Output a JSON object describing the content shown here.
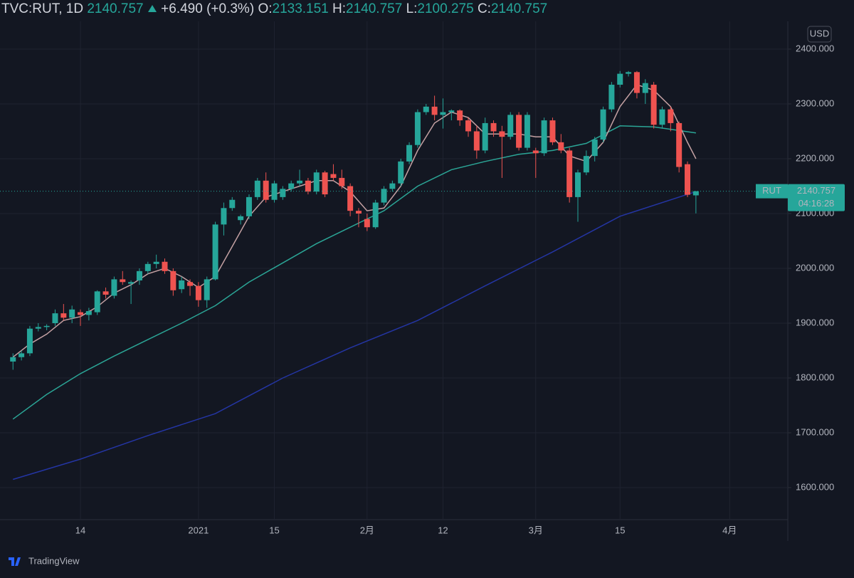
{
  "header": {
    "symbol": "TVC:RUT, 1D",
    "price": "2140.757",
    "change": "+6.490 (+0.3%)",
    "ohlc": [
      {
        "label": "O:",
        "value": "2133.151"
      },
      {
        "label": "H:",
        "value": "2140.757"
      },
      {
        "label": "L:",
        "value": "2100.275"
      },
      {
        "label": "C:",
        "value": "2140.757"
      }
    ]
  },
  "currency": "USD",
  "tag": {
    "symbol": "RUT",
    "price": "2140.757",
    "countdown": "04:16:28"
  },
  "brand": "TradingView",
  "chart_data": {
    "type": "candlestick",
    "up_color": "#26a69a",
    "down_color": "#ef5350",
    "grid": true,
    "xlim": [
      -1.54,
      91.9
    ],
    "ylim": [
      1541.6,
      2450.6
    ],
    "xticks": [
      {
        "value": 8,
        "label": "14"
      },
      {
        "value": 22,
        "label": "2021"
      },
      {
        "value": 31,
        "label": "15"
      },
      {
        "value": 42,
        "label": "2月"
      },
      {
        "value": 51,
        "label": "12"
      },
      {
        "value": 62,
        "label": "3月"
      },
      {
        "value": 72,
        "label": "15"
      },
      {
        "value": 85,
        "label": "4月"
      }
    ],
    "yticks": [
      {
        "value": 1600,
        "label": "1600.000"
      },
      {
        "value": 1700,
        "label": "1700.000"
      },
      {
        "value": 1800,
        "label": "1800.000"
      },
      {
        "value": 1900,
        "label": "1900.000"
      },
      {
        "value": 2000,
        "label": "2000.000"
      },
      {
        "value": 2100,
        "label": "2100.000"
      },
      {
        "value": 2200,
        "label": "2200.000"
      },
      {
        "value": 2300,
        "label": "2300.000"
      },
      {
        "value": 2400,
        "label": "2400.000"
      }
    ],
    "open": [
      1830,
      1838,
      1845,
      1890,
      1893,
      1900,
      1918,
      1910,
      1920,
      1915,
      1920,
      1958,
      1950,
      1980,
      1972,
      1978,
      1995,
      2008,
      2012,
      1995,
      1962,
      1975,
      1968,
      1942,
      1980,
      2080,
      2110,
      2088,
      2095,
      2130,
      2160,
      2125,
      2130,
      2145,
      2155,
      2160,
      2140,
      2175,
      2172,
      2165,
      2150,
      2105,
      2090,
      2075,
      2120,
      2145,
      2155,
      2195,
      2225,
      2285,
      2295,
      2280,
      2285,
      2288,
      2270,
      2250,
      2215,
      2265,
      2250,
      2240,
      2280,
      2220,
      2215,
      2210,
      2270,
      2230,
      2215,
      2130,
      2175,
      2205,
      2235,
      2290,
      2335,
      2355,
      2358,
      2320,
      2335,
      2262,
      2290,
      2265,
      2190,
      2133.151
    ],
    "high": [
      1845,
      1850,
      1895,
      1900,
      1898,
      1925,
      1935,
      1932,
      1925,
      1928,
      1960,
      1965,
      1985,
      1995,
      1978,
      2000,
      2012,
      2025,
      2018,
      2000,
      1985,
      1980,
      1975,
      1985,
      2085,
      2120,
      2130,
      2098,
      2135,
      2165,
      2175,
      2160,
      2150,
      2160,
      2180,
      2165,
      2180,
      2178,
      2190,
      2180,
      2155,
      2110,
      2100,
      2125,
      2150,
      2160,
      2200,
      2230,
      2290,
      2300,
      2315,
      2310,
      2290,
      2290,
      2275,
      2260,
      2275,
      2270,
      2260,
      2285,
      2285,
      2285,
      2220,
      2275,
      2275,
      2245,
      2220,
      2180,
      2215,
      2240,
      2295,
      2340,
      2360,
      2360,
      2360,
      2345,
      2340,
      2295,
      2295,
      2268,
      2195,
      2140.757
    ],
    "low": [
      1815,
      1832,
      1840,
      1885,
      1887,
      1895,
      1905,
      1900,
      1895,
      1905,
      1915,
      1945,
      1945,
      1970,
      1935,
      1970,
      1990,
      2000,
      1990,
      1950,
      1955,
      1950,
      1930,
      1928,
      1978,
      2060,
      2105,
      2080,
      2090,
      2125,
      2120,
      2120,
      2125,
      2140,
      2150,
      2135,
      2135,
      2130,
      2160,
      2145,
      2095,
      2075,
      2068,
      2072,
      2115,
      2140,
      2150,
      2190,
      2220,
      2280,
      2270,
      2255,
      2270,
      2260,
      2240,
      2200,
      2210,
      2240,
      2165,
      2235,
      2215,
      2215,
      2165,
      2205,
      2225,
      2210,
      2120,
      2085,
      2170,
      2195,
      2230,
      2285,
      2330,
      2350,
      2310,
      2300,
      2255,
      2255,
      2250,
      2175,
      2130,
      2100.275
    ],
    "close": [
      1838,
      1845,
      1890,
      1893,
      1895,
      1918,
      1910,
      1925,
      1915,
      1922,
      1958,
      1952,
      1980,
      1975,
      1975,
      1995,
      2008,
      2012,
      1995,
      1960,
      1978,
      1968,
      1942,
      1980,
      2080,
      2110,
      2125,
      2095,
      2130,
      2160,
      2125,
      2155,
      2145,
      2155,
      2160,
      2140,
      2175,
      2135,
      2165,
      2150,
      2105,
      2100,
      2075,
      2120,
      2145,
      2155,
      2195,
      2225,
      2285,
      2295,
      2280,
      2285,
      2288,
      2270,
      2250,
      2215,
      2265,
      2250,
      2240,
      2280,
      2220,
      2280,
      2210,
      2270,
      2230,
      2215,
      2130,
      2175,
      2205,
      2235,
      2290,
      2335,
      2355,
      2358,
      2320,
      2338,
      2262,
      2290,
      2265,
      2185,
      2134.267,
      2140.757
    ],
    "lines": [
      {
        "color": "#2435a3",
        "x": [
          0,
          8,
          16,
          24,
          32,
          40,
          48,
          56,
          64,
          72,
          81
        ],
        "values": [
          1615,
          1652,
          1695,
          1735,
          1800,
          1855,
          1905,
          1968,
          2030,
          2095,
          2140
        ]
      },
      {
        "color": "#2ba596",
        "x": [
          0,
          4,
          8,
          12,
          16,
          20,
          24,
          28,
          32,
          36,
          40,
          44,
          48,
          52,
          56,
          60,
          64,
          68,
          72,
          76,
          81
        ],
        "values": [
          1725,
          1770,
          1808,
          1840,
          1870,
          1900,
          1932,
          1975,
          2010,
          2045,
          2075,
          2105,
          2150,
          2180,
          2195,
          2208,
          2215,
          2228,
          2260,
          2258,
          2247
        ]
      },
      {
        "color": "#c4a1a3",
        "x": [
          0,
          2,
          4,
          6,
          8,
          10,
          12,
          14,
          16,
          18,
          20,
          22,
          24,
          26,
          28,
          30,
          32,
          34,
          36,
          38,
          40,
          42,
          44,
          46,
          48,
          50,
          52,
          54,
          56,
          58,
          60,
          62,
          64,
          66,
          68,
          70,
          72,
          74,
          76,
          78,
          80,
          81
        ],
        "values": [
          1838,
          1862,
          1880,
          1905,
          1912,
          1930,
          1955,
          1970,
          1990,
          2000,
          1985,
          1965,
          1985,
          2040,
          2095,
          2130,
          2140,
          2150,
          2160,
          2160,
          2140,
          2105,
          2110,
          2150,
          2215,
          2265,
          2285,
          2275,
          2245,
          2245,
          2245,
          2240,
          2240,
          2205,
          2195,
          2230,
          2295,
          2335,
          2325,
          2295,
          2230,
          2200
        ]
      }
    ]
  }
}
